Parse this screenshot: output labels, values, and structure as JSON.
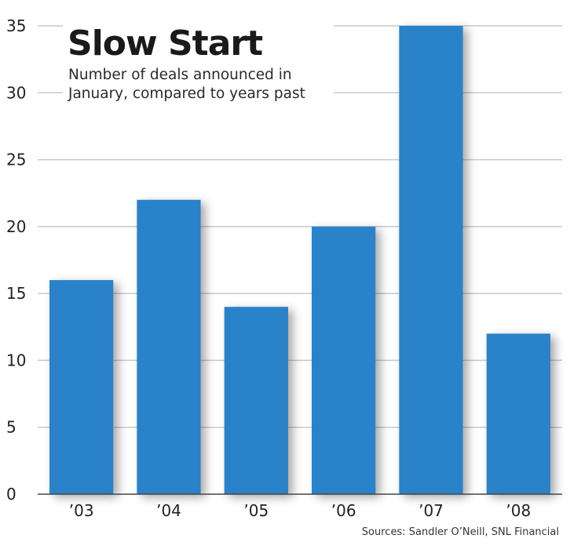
{
  "chart_data": {
    "type": "bar",
    "title": "Slow Start",
    "subtitle_lines": [
      "Number of deals announced in",
      "January, compared to years past"
    ],
    "categories": [
      "’03",
      "’04",
      "’05",
      "’06",
      "’07",
      "’08"
    ],
    "values": [
      16,
      22,
      14,
      20,
      35,
      12
    ],
    "y_ticks": [
      0,
      5,
      10,
      15,
      20,
      25,
      30,
      35
    ],
    "ylim": [
      0,
      35
    ],
    "grid": true,
    "bar_color": "#2a82c8",
    "source": "Sources: Sandler O’Neill, SNL Financial"
  }
}
